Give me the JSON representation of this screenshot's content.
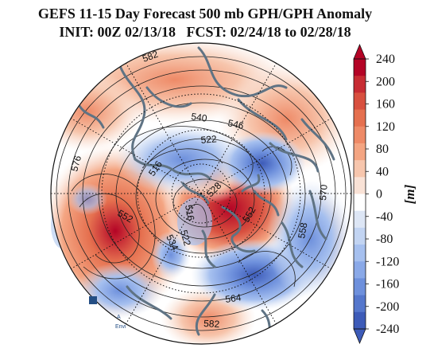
{
  "title": {
    "line1": "GEFS 11-15 Day Forecast 500 mb GPH/GPH Anomaly",
    "line2": "INIT: 00Z 02/13/18   FCST: 02/24/18 to 02/28/18"
  },
  "map": {
    "projection": "north-polar-stereographic",
    "contour_labels": [
      "582",
      "540",
      "546",
      "522",
      "576",
      "516",
      "516",
      "528",
      "552",
      "534",
      "522",
      "552",
      "558",
      "570",
      "564",
      "582"
    ]
  },
  "colorbar": {
    "unit": "[m]",
    "ticks": [
      "240",
      "200",
      "160",
      "120",
      "80",
      "40",
      "0",
      "-40",
      "-80",
      "-120",
      "-160",
      "-200",
      "-240"
    ],
    "colors_top_to_bottom": [
      "#b40426",
      "#c72c33",
      "#d8503f",
      "#e5704f",
      "#ee8a67",
      "#f4a582",
      "#f7c6ad",
      "#f9e2d6",
      "#ffffff",
      "#dde6f5",
      "#c2d4f2",
      "#a6c0ef",
      "#8aa9e8",
      "#6e90dc",
      "#5577cc",
      "#3d5bb8"
    ]
  }
}
